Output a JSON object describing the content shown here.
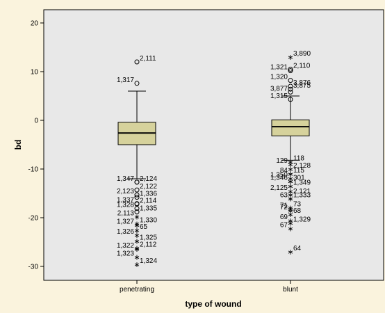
{
  "chart_data": {
    "type": "boxplot",
    "xlabel": "type of wound",
    "ylabel": "bd",
    "ylim": [
      -33,
      23
    ],
    "yticks": [
      "20",
      "10",
      "0",
      "-10",
      "-20",
      "-30"
    ],
    "ytick_values": [
      20,
      10,
      0,
      -10,
      -20,
      -30
    ],
    "categories": [
      "penetrating",
      "blunt"
    ],
    "colors": {
      "plot_bg": "#e8e8e8",
      "box_fill": "#d6d29c",
      "page_bg": "#faf3dd"
    },
    "boxes": [
      {
        "category": "penetrating",
        "whisker_low": -12,
        "q1": -5,
        "median": -2.6,
        "q3": -0.4,
        "whisker_high": 6,
        "outliers": [
          {
            "label": "2,111",
            "y": 12,
            "marker": "circle"
          },
          {
            "label": "1,317",
            "y": 7.6,
            "marker": "circle"
          },
          {
            "label": "2,124",
            "y": -12.7,
            "marker": "circle"
          },
          {
            "label": "1,347",
            "y": -12.7,
            "marker": "circle"
          },
          {
            "label": "2,122",
            "y": -14.3,
            "marker": "circle"
          },
          {
            "label": "2,123",
            "y": -15.3,
            "marker": "circle"
          },
          {
            "label": "1,336",
            "y": -15.8,
            "marker": "circle"
          },
          {
            "label": "1,337",
            "y": -17.1,
            "marker": "circle"
          },
          {
            "label": "2,114",
            "y": -17.2,
            "marker": "circle"
          },
          {
            "label": "1,328",
            "y": -18.1,
            "marker": "circle"
          },
          {
            "label": "1,335",
            "y": -18.8,
            "marker": "circle"
          },
          {
            "label": "2,113",
            "y": -19.8,
            "marker": "star"
          },
          {
            "label": "1,330",
            "y": -21.2,
            "marker": "star"
          },
          {
            "label": "1,327",
            "y": -21.5,
            "marker": "star"
          },
          {
            "label": "65",
            "y": -22.6,
            "marker": "star"
          },
          {
            "label": "1,326",
            "y": -23.6,
            "marker": "star"
          },
          {
            "label": "1,325",
            "y": -24.8,
            "marker": "star"
          },
          {
            "label": "1,322",
            "y": -26.4,
            "marker": "star"
          },
          {
            "label": "2,112",
            "y": -26.2,
            "marker": "star"
          },
          {
            "label": "1,323",
            "y": -28.1,
            "marker": "star"
          },
          {
            "label": "1,324",
            "y": -29.6,
            "marker": "star"
          }
        ]
      },
      {
        "category": "blunt",
        "whisker_low": -8.2,
        "q1": -3.2,
        "median": -1.3,
        "q3": 0.1,
        "whisker_high": 5,
        "outliers": [
          {
            "label": "3,890",
            "y": 13,
            "marker": "star"
          },
          {
            "label": "1,321",
            "y": 10.2,
            "marker": "circle"
          },
          {
            "label": "2,110",
            "y": 10.5,
            "marker": "circle"
          },
          {
            "label": "1,320",
            "y": 8.2,
            "marker": "circle"
          },
          {
            "label": "3,876",
            "y": 7,
            "marker": "circle"
          },
          {
            "label": "3,877",
            "y": 5.8,
            "marker": "circle"
          },
          {
            "label": "3,875",
            "y": 6.4,
            "marker": "circle"
          },
          {
            "label": "1,315",
            "y": 4.3,
            "marker": "circle"
          },
          {
            "label": "118",
            "y": -8.5,
            "marker": "star"
          },
          {
            "label": "129",
            "y": -9,
            "marker": "star"
          },
          {
            "label": "2,128",
            "y": -10,
            "marker": "star"
          },
          {
            "label": "84",
            "y": -11,
            "marker": "star"
          },
          {
            "label": "115",
            "y": -11,
            "marker": "star"
          },
          {
            "label": "1,350",
            "y": -11.9,
            "marker": "star"
          },
          {
            "label": "301",
            "y": -12.5,
            "marker": "star"
          },
          {
            "label": "1,346",
            "y": -12.5,
            "marker": "star"
          },
          {
            "label": "1,349",
            "y": -13.5,
            "marker": "star"
          },
          {
            "label": "2,125",
            "y": -14.6,
            "marker": "star"
          },
          {
            "label": "2,121",
            "y": -15.3,
            "marker": "star"
          },
          {
            "label": "63",
            "y": -16.1,
            "marker": "star"
          },
          {
            "label": "1,333",
            "y": -16.1,
            "marker": "star"
          },
          {
            "label": "71",
            "y": -18.2,
            "marker": "star"
          },
          {
            "label": "73",
            "y": -17.9,
            "marker": "star"
          },
          {
            "label": "72",
            "y": -18.6,
            "marker": "star"
          },
          {
            "label": "68",
            "y": -19.3,
            "marker": "star"
          },
          {
            "label": "69",
            "y": -20.6,
            "marker": "star"
          },
          {
            "label": "1,329",
            "y": -21.1,
            "marker": "star"
          },
          {
            "label": "67",
            "y": -22.2,
            "marker": "star"
          },
          {
            "label": "64",
            "y": -27,
            "marker": "star"
          }
        ]
      }
    ]
  }
}
